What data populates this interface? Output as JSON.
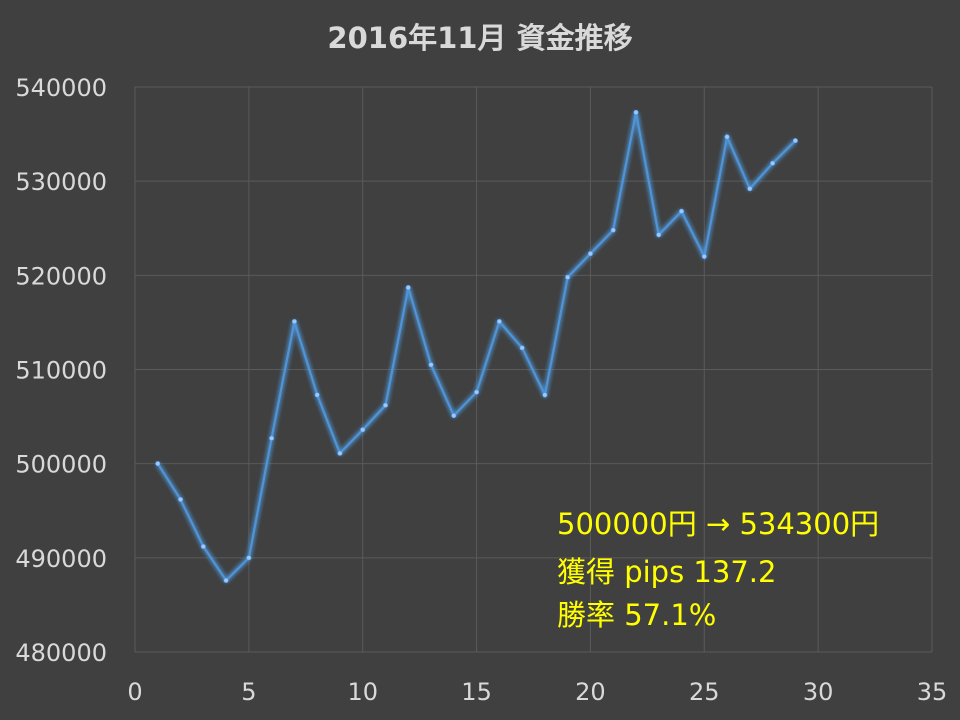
{
  "chart_data": {
    "type": "line",
    "title": "2016年11月 資金推移",
    "xlabel": "",
    "ylabel": "",
    "xlim": [
      0,
      35
    ],
    "ylim": [
      480000,
      540000
    ],
    "xticks": [
      0,
      5,
      10,
      15,
      20,
      25,
      30,
      35
    ],
    "yticks": [
      480000,
      490000,
      500000,
      510000,
      520000,
      530000,
      540000
    ],
    "grid": true,
    "legend": "none",
    "color": "#4f94d6",
    "x": [
      1,
      2,
      3,
      4,
      5,
      6,
      7,
      8,
      9,
      10,
      11,
      12,
      13,
      14,
      15,
      16,
      17,
      18,
      19,
      20,
      21,
      22,
      23,
      24,
      25,
      26,
      27,
      28,
      29
    ],
    "y": [
      500000,
      496200,
      491200,
      487600,
      490000,
      502700,
      515100,
      507300,
      501100,
      503600,
      506200,
      518700,
      510500,
      505100,
      507600,
      515100,
      512300,
      507300,
      519800,
      522300,
      524800,
      537300,
      524300,
      526800,
      522000,
      534700,
      529200,
      531900,
      534300
    ]
  },
  "annotation": {
    "lines": [
      "500000円 → 534300円",
      "獲得 pips  137.2",
      "勝率 57.1%"
    ],
    "color": "#ffff00"
  }
}
